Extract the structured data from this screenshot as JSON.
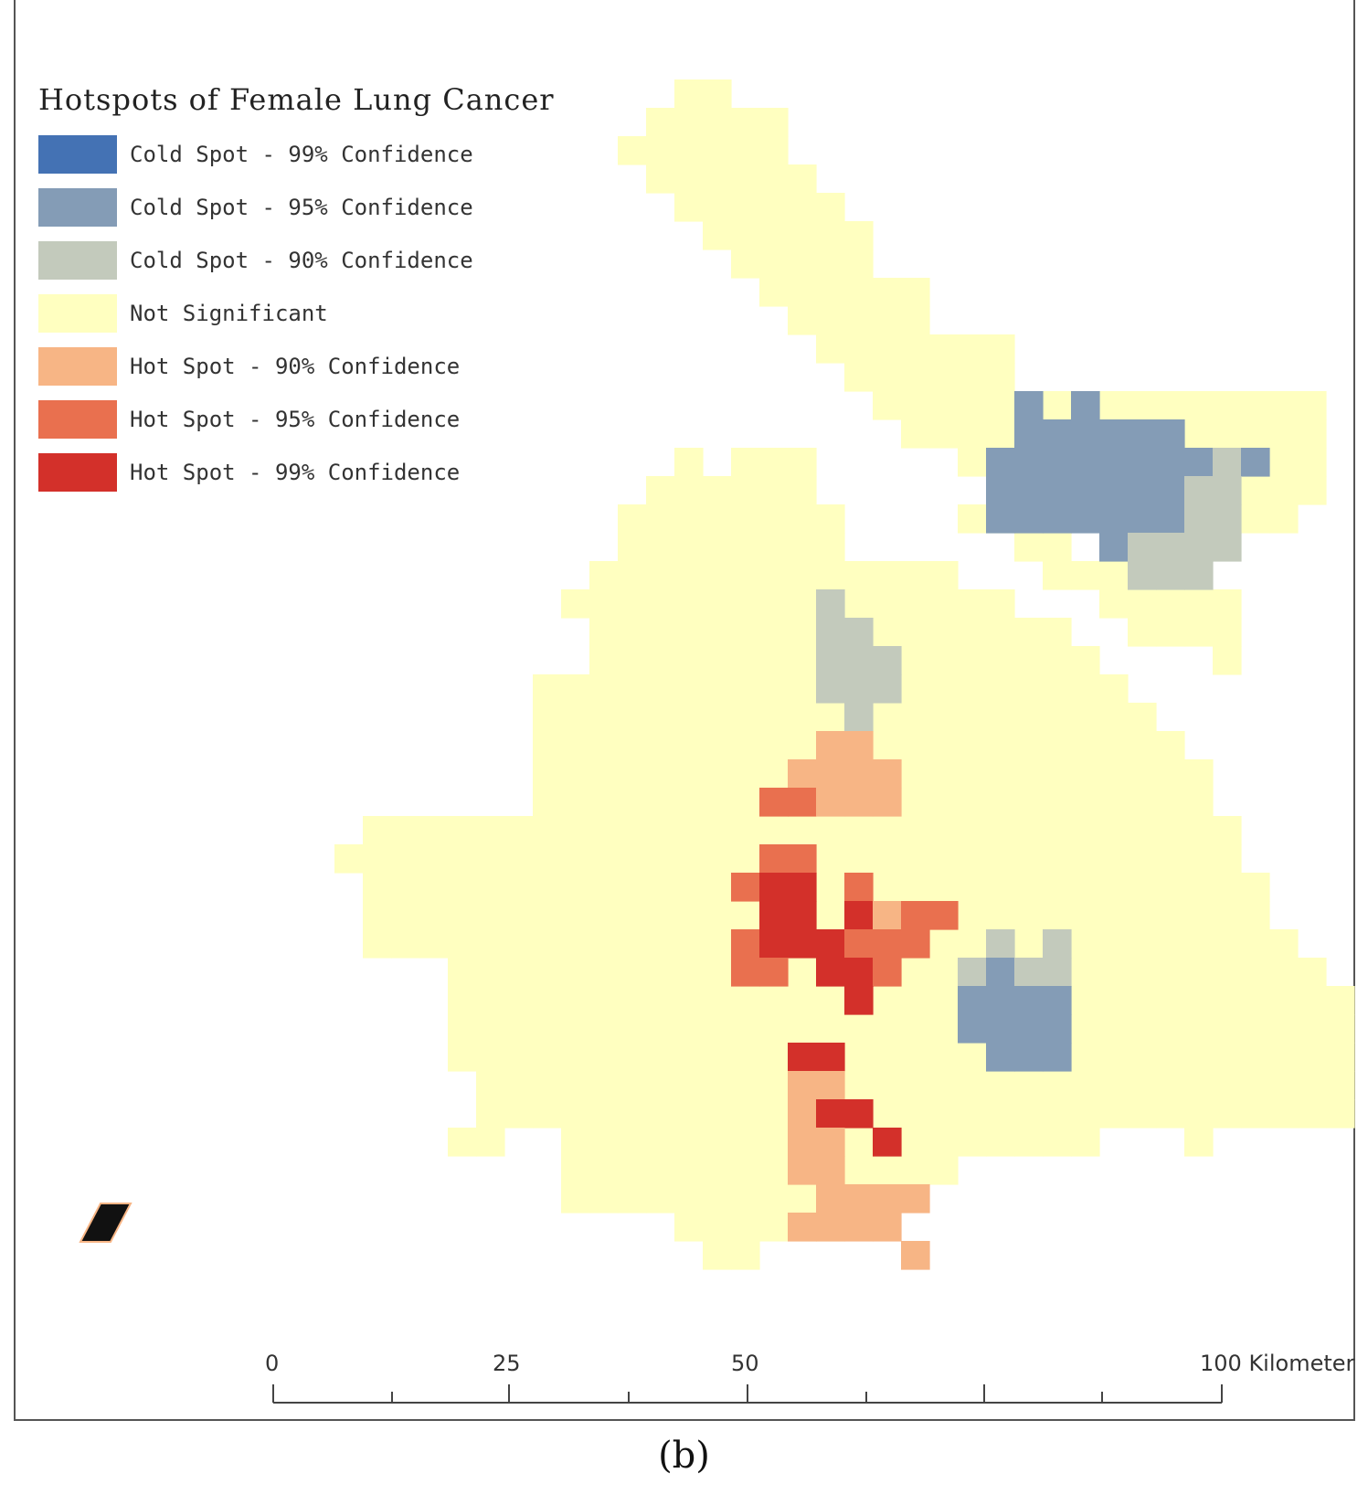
{
  "legend": {
    "title": "Hotspots of Female Lung Cancer",
    "items": [
      {
        "label": "Cold Spot - 99% Confidence",
        "color": "#4472b4"
      },
      {
        "label": "Cold Spot - 95% Confidence",
        "color": "#849cb6"
      },
      {
        "label": "Cold Spot - 90% Confidence",
        "color": "#c3cabc"
      },
      {
        "label": "Not Significant",
        "color": "#ffffc0"
      },
      {
        "label": "Hot Spot - 90% Confidence",
        "color": "#f7b585"
      },
      {
        "label": "Hot Spot - 95% Confidence",
        "color": "#e9704f"
      },
      {
        "label": "Hot Spot - 99% Confidence",
        "color": "#d3302a"
      }
    ]
  },
  "scale_bar": {
    "labels": [
      "0",
      "25",
      "50",
      "100 Kilometer"
    ]
  },
  "caption": "(b)",
  "north_arrow_icon": "north-arrow-icon"
}
